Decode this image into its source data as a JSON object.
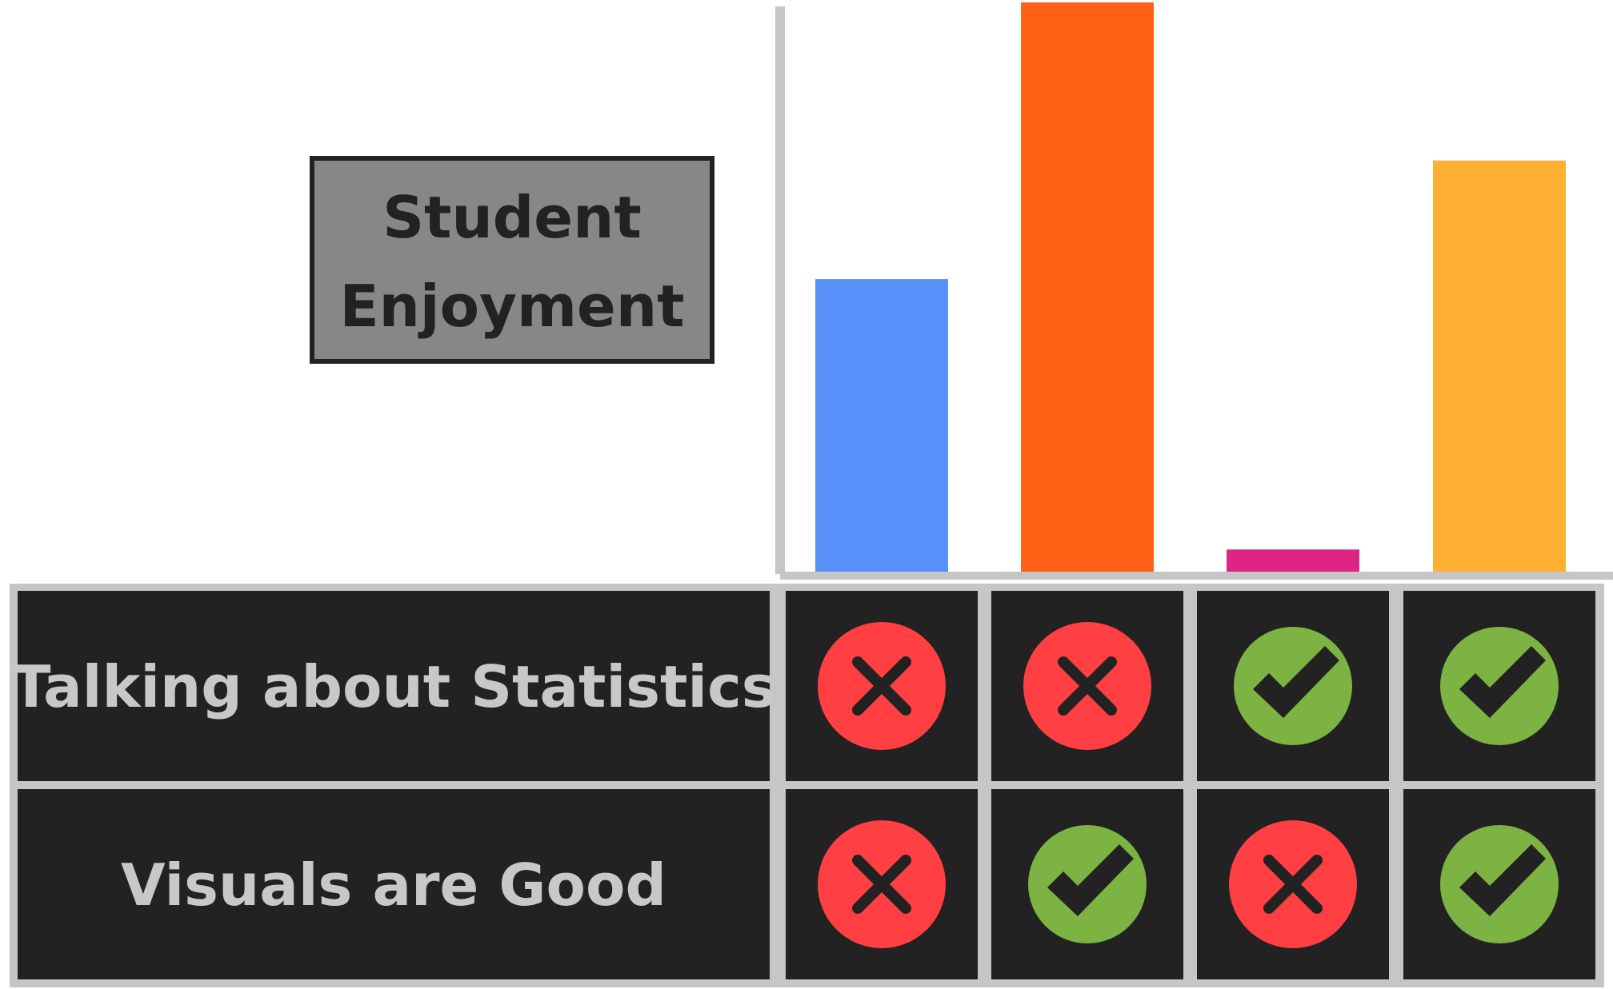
{
  "chart_data": {
    "type": "bar",
    "categories": [
      "",
      "",
      "",
      ""
    ],
    "values": [
      370,
      720,
      28,
      520
    ],
    "ylim": [
      0,
      720
    ],
    "ylabel": "Student Enjoyment",
    "legend_box_label": "Student Enjoyment",
    "colors": [
      "#5790f8",
      "#ff6117",
      "#de2484",
      "#ffaf31"
    ],
    "grid": false
  },
  "matrix": {
    "rows": [
      {
        "label": "Talking about Statistics",
        "values": [
          false,
          false,
          true,
          true
        ]
      },
      {
        "label": "Visuals are Good",
        "values": [
          false,
          true,
          false,
          true
        ]
      }
    ],
    "icon_names": {
      "true": "check-icon",
      "false": "cross-icon"
    },
    "icon_colors": {
      "true": "#7cb342",
      "false": "#ff3f42"
    }
  }
}
